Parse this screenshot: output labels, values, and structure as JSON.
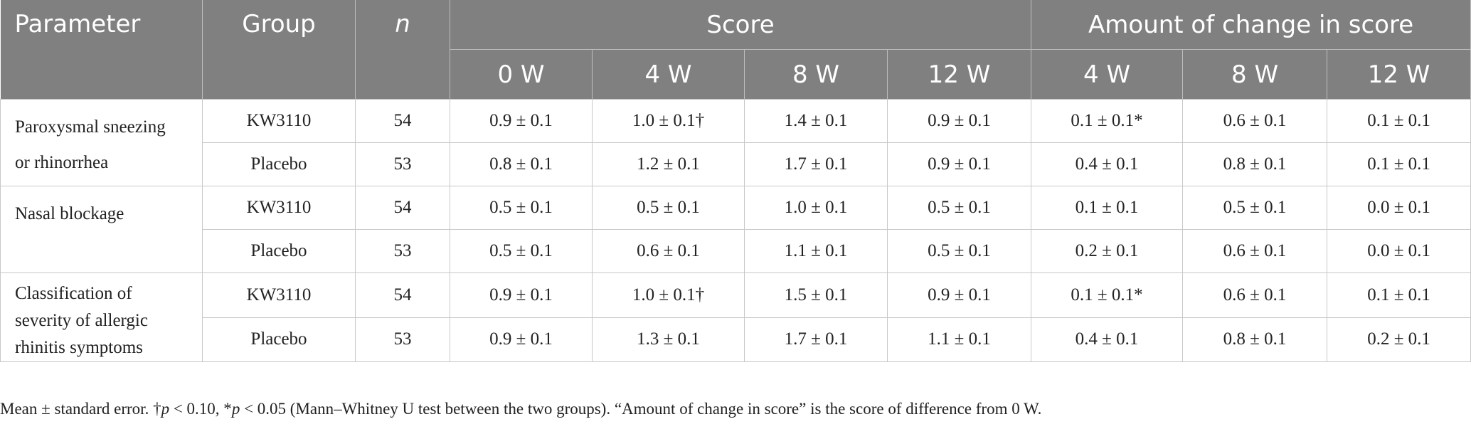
{
  "table": {
    "headers": {
      "parameter": "Parameter",
      "group": "Group",
      "n": "n",
      "score": "Score",
      "change": "Amount of change in score",
      "score_weeks": [
        "0 W",
        "4 W",
        "8 W",
        "12 W"
      ],
      "change_weeks": [
        "4 W",
        "8 W",
        "12 W"
      ]
    },
    "rows": [
      {
        "parameter_lines": [
          "Paroxysmal sneezing",
          "or rhinorrhea"
        ],
        "groups": [
          {
            "group": "KW3110",
            "n": "54",
            "score": [
              "0.9 ± 0.1",
              "1.0 ± 0.1†",
              "1.4 ± 0.1",
              "0.9 ± 0.1"
            ],
            "change": [
              "0.1 ± 0.1*",
              "0.6 ± 0.1",
              "0.1 ± 0.1"
            ]
          },
          {
            "group": "Placebo",
            "n": "53",
            "score": [
              "0.8 ± 0.1",
              "1.2 ± 0.1",
              "1.7 ± 0.1",
              "0.9 ± 0.1"
            ],
            "change": [
              "0.4 ± 0.1",
              "0.8 ± 0.1",
              "0.1 ± 0.1"
            ]
          }
        ]
      },
      {
        "parameter_lines": [
          "Nasal blockage"
        ],
        "groups": [
          {
            "group": "KW3110",
            "n": "54",
            "score": [
              "0.5 ± 0.1",
              "0.5 ± 0.1",
              "1.0 ± 0.1",
              "0.5 ± 0.1"
            ],
            "change": [
              "0.1 ± 0.1",
              "0.5 ± 0.1",
              "0.0 ± 0.1"
            ]
          },
          {
            "group": "Placebo",
            "n": "53",
            "score": [
              "0.5 ± 0.1",
              "0.6 ± 0.1",
              "1.1 ± 0.1",
              "0.5 ± 0.1"
            ],
            "change": [
              "0.2 ± 0.1",
              "0.6 ± 0.1",
              "0.0 ± 0.1"
            ]
          }
        ]
      },
      {
        "parameter_lines": [
          "Classification of",
          "severity of allergic",
          "rhinitis symptoms"
        ],
        "groups": [
          {
            "group": "KW3110",
            "n": "54",
            "score": [
              "0.9 ± 0.1",
              "1.0 ± 0.1†",
              "1.5 ± 0.1",
              "0.9 ± 0.1"
            ],
            "change": [
              "0.1 ± 0.1*",
              "0.6 ± 0.1",
              "0.1 ± 0.1"
            ]
          },
          {
            "group": "Placebo",
            "n": "53",
            "score": [
              "0.9 ± 0.1",
              "1.3 ± 0.1",
              "1.7 ± 0.1",
              "1.1 ± 0.1"
            ],
            "change": [
              "0.4 ± 0.1",
              "0.8 ± 0.1",
              "0.2 ± 0.1"
            ]
          }
        ]
      }
    ]
  },
  "footnote": {
    "part1": "Mean ± standard error. †",
    "p1": "p",
    "part2": " < 0.10, *",
    "p2": "p",
    "part3": " < 0.05 (Mann–Whitney U test between the two groups). “Amount of change in score” is the score of difference from 0 W."
  }
}
